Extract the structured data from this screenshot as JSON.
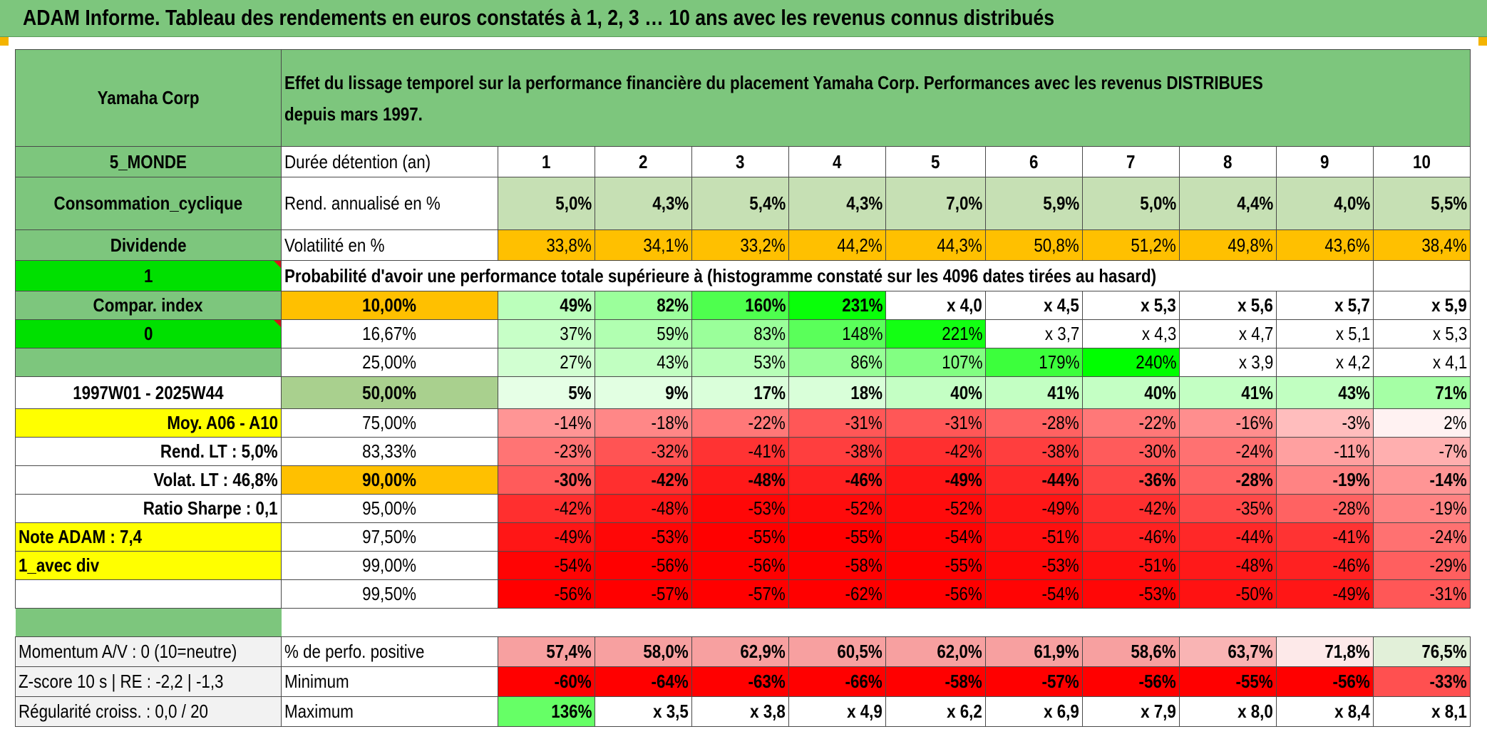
{
  "header": {
    "title": "ADAM Informe. Tableau des rendements en euros constatés à 1, 2, 3 … 10 ans avec les revenus connus distribués"
  },
  "sidebar": {
    "company": "Yamaha Corp",
    "region": "5_MONDE",
    "sector": "Consommation_cyclique",
    "dividend_label": "Dividende",
    "option_value": "1",
    "compar_index_label": "Compar. index",
    "compar_index_value": "0",
    "period": "1997W01 - 2025W44",
    "moy": "Moy. A06 - A10",
    "rend_lt": "Rend. LT :   5,0%",
    "volat_lt": "Volat. LT :   46,8%",
    "sharpe": "Ratio Sharpe :   0,1",
    "note": "Note ADAM : 7,4",
    "avec_div": "1_avec div",
    "momentum": "Momentum A/V : 0 (10=neutre)",
    "zscore": "Z-score 10 s | RE : -2,2 | -1,3",
    "regularite": "Régularité croiss. : 0,0 / 20"
  },
  "main": {
    "title": "Effet du lissage temporel sur la performance financière du placement Yamaha Corp. Performances avec les revenus DISTRIBUES depuis mars 1997.",
    "duration_label": "Durée détention (an)",
    "years": [
      "1",
      "2",
      "3",
      "4",
      "5",
      "6",
      "7",
      "8",
      "9",
      "10"
    ],
    "rend_label": "Rend. annualisé en %",
    "rend": [
      "5,0%",
      "4,3%",
      "5,4%",
      "4,3%",
      "7,0%",
      "5,9%",
      "5,0%",
      "4,4%",
      "4,0%",
      "5,5%"
    ],
    "vol_label": "Volatilité en %",
    "vol": [
      "33,8%",
      "34,1%",
      "33,2%",
      "44,2%",
      "44,3%",
      "50,8%",
      "51,2%",
      "49,8%",
      "43,6%",
      "38,4%"
    ],
    "prob_caption": "Probabilité d'avoir une performance totale supérieure à (histogramme constaté sur les 4096 dates tirées au hasard)",
    "quantiles": [
      {
        "p": "10,00%",
        "v": [
          "49%",
          "82%",
          "160%",
          "231%",
          "x 4,0",
          "x 4,5",
          "x 5,3",
          "x 5,6",
          "x 5,7",
          "x 5,9"
        ]
      },
      {
        "p": "16,67%",
        "v": [
          "37%",
          "59%",
          "83%",
          "148%",
          "221%",
          "x 3,7",
          "x 4,3",
          "x 4,7",
          "x 5,1",
          "x 5,3"
        ]
      },
      {
        "p": "25,00%",
        "v": [
          "27%",
          "43%",
          "53%",
          "86%",
          "107%",
          "179%",
          "240%",
          "x 3,9",
          "x 4,2",
          "x 4,1"
        ]
      },
      {
        "p": "50,00%",
        "v": [
          "5%",
          "9%",
          "17%",
          "18%",
          "40%",
          "41%",
          "40%",
          "41%",
          "43%",
          "71%"
        ]
      },
      {
        "p": "75,00%",
        "v": [
          "-14%",
          "-18%",
          "-22%",
          "-31%",
          "-31%",
          "-28%",
          "-22%",
          "-16%",
          "-3%",
          "2%"
        ]
      },
      {
        "p": "83,33%",
        "v": [
          "-23%",
          "-32%",
          "-41%",
          "-38%",
          "-42%",
          "-38%",
          "-30%",
          "-24%",
          "-11%",
          "-7%"
        ]
      },
      {
        "p": "90,00%",
        "v": [
          "-30%",
          "-42%",
          "-48%",
          "-46%",
          "-49%",
          "-44%",
          "-36%",
          "-28%",
          "-19%",
          "-14%"
        ]
      },
      {
        "p": "95,00%",
        "v": [
          "-42%",
          "-48%",
          "-53%",
          "-52%",
          "-52%",
          "-49%",
          "-42%",
          "-35%",
          "-28%",
          "-19%"
        ]
      },
      {
        "p": "97,50%",
        "v": [
          "-49%",
          "-53%",
          "-55%",
          "-55%",
          "-54%",
          "-51%",
          "-46%",
          "-44%",
          "-41%",
          "-24%"
        ]
      },
      {
        "p": "99,00%",
        "v": [
          "-54%",
          "-56%",
          "-56%",
          "-58%",
          "-55%",
          "-53%",
          "-51%",
          "-48%",
          "-46%",
          "-29%"
        ]
      },
      {
        "p": "99,50%",
        "v": [
          "-56%",
          "-57%",
          "-57%",
          "-62%",
          "-56%",
          "-54%",
          "-53%",
          "-50%",
          "-49%",
          "-31%"
        ]
      }
    ],
    "pos_label": "% de perfo. positive",
    "pos": [
      "57,4%",
      "58,0%",
      "62,9%",
      "60,5%",
      "62,0%",
      "61,9%",
      "58,6%",
      "63,7%",
      "71,8%",
      "76,5%"
    ],
    "min_label": "Minimum",
    "min": [
      "-60%",
      "-64%",
      "-63%",
      "-66%",
      "-58%",
      "-57%",
      "-56%",
      "-55%",
      "-56%",
      "-33%"
    ],
    "max_label": "Maximum",
    "max": [
      "136%",
      "x 3,5",
      "x 3,8",
      "x 4,9",
      "x 6,2",
      "x 6,9",
      "x 7,9",
      "x 8,0",
      "x 8,4",
      "x 8,1"
    ]
  },
  "colors": {
    "header_green": "#7dc67d",
    "rend_green": "#c6e0b4",
    "vol_orange": "#ffc000",
    "bright_green": "#00e000",
    "yellow": "#ffff00",
    "red_text": "#d11a1a"
  }
}
